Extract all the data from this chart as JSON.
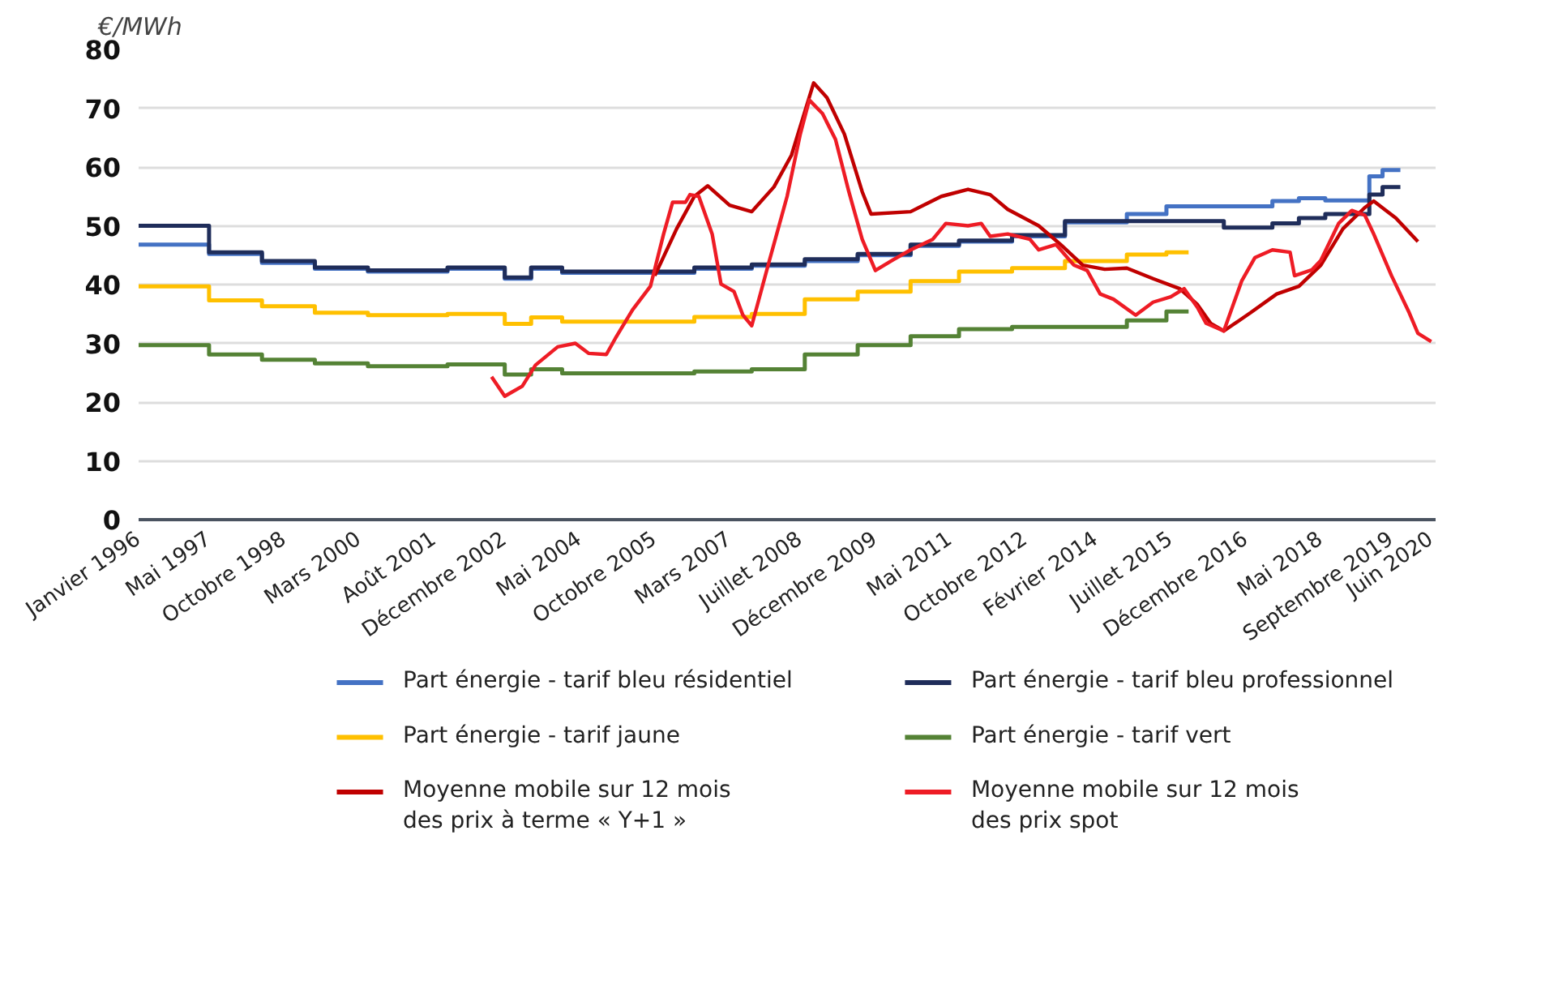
{
  "chart_data": {
    "type": "line",
    "ylabel": "€/MWh",
    "ylim": [
      0,
      80
    ],
    "yticks": [
      0,
      10,
      20,
      30,
      40,
      50,
      60,
      70,
      80
    ],
    "xlim": [
      "1996-01",
      "2020-07"
    ],
    "xticks": [
      {
        "value": "1996-01",
        "label": "Janvier 1996"
      },
      {
        "value": "1997-05",
        "label": "Mai 1997"
      },
      {
        "value": "1998-10",
        "label": "Octobre 1998"
      },
      {
        "value": "2000-03",
        "label": "Mars 2000"
      },
      {
        "value": "2001-08",
        "label": "Août 2001"
      },
      {
        "value": "2002-12",
        "label": "Décembre 2002"
      },
      {
        "value": "2004-05",
        "label": "Mai 2004"
      },
      {
        "value": "2005-10",
        "label": "Octobre 2005"
      },
      {
        "value": "2007-03",
        "label": "Mars 2007"
      },
      {
        "value": "2008-07",
        "label": "Juillet 2008"
      },
      {
        "value": "2009-12",
        "label": "Décembre 2009"
      },
      {
        "value": "2011-05",
        "label": "Mai 2011"
      },
      {
        "value": "2012-10",
        "label": "Octobre 2012"
      },
      {
        "value": "2014-02",
        "label": "Février 2014"
      },
      {
        "value": "2015-07",
        "label": "Juillet 2015"
      },
      {
        "value": "2016-12",
        "label": "Décembre 2016"
      },
      {
        "value": "2018-05",
        "label": "Mai 2018"
      },
      {
        "value": "2019-09",
        "label": "Septembre 2019"
      },
      {
        "value": "2020-06",
        "label": "Juin 2020"
      }
    ],
    "grid": "y",
    "legend": "bottom",
    "line_style": "solid",
    "marker": "none",
    "series": [
      {
        "name": "Part énergie - tarif bleu résidentiel",
        "color": "#4472c4",
        "type": "step",
        "x": [
          "1996-01",
          "1997-05",
          "1998-05",
          "1999-05",
          "2000-05",
          "2001-11",
          "2002-12",
          "2003-06",
          "2004-01",
          "2006-07",
          "2007-08",
          "2008-08",
          "2009-08",
          "2010-08",
          "2011-07",
          "2012-07",
          "2013-07",
          "2014-09",
          "2015-06",
          "2017-06",
          "2017-12",
          "2018-06",
          "2019-04",
          "2019-07",
          "2019-11"
        ],
        "values": [
          46.8,
          45.2,
          43.7,
          42.7,
          42.2,
          42.7,
          41.0,
          42.7,
          42.0,
          42.7,
          43.2,
          44.0,
          45.0,
          46.6,
          47.3,
          48.2,
          50.6,
          52.0,
          53.3,
          54.2,
          54.7,
          54.3,
          58.4,
          59.5,
          59.5
        ]
      },
      {
        "name": "Part énergie - tarif bleu professionnel",
        "color": "#1f2d5a",
        "type": "step",
        "x": [
          "1996-01",
          "1997-05",
          "1998-05",
          "1999-05",
          "2000-05",
          "2001-11",
          "2002-12",
          "2003-06",
          "2004-01",
          "2006-07",
          "2007-08",
          "2008-08",
          "2009-08",
          "2010-08",
          "2011-07",
          "2012-07",
          "2013-07",
          "2016-07",
          "2017-06",
          "2017-12",
          "2018-06",
          "2019-04",
          "2019-07",
          "2019-11"
        ],
        "values": [
          50.0,
          45.5,
          44.0,
          42.9,
          42.4,
          42.9,
          41.2,
          42.9,
          42.2,
          42.9,
          43.4,
          44.3,
          45.2,
          46.8,
          47.5,
          48.4,
          50.8,
          49.7,
          50.4,
          51.3,
          52.0,
          55.3,
          56.6,
          56.6
        ]
      },
      {
        "name": "Part énergie - tarif jaune",
        "color": "#ffc000",
        "type": "step",
        "x": [
          "1996-01",
          "1997-05",
          "1998-05",
          "1999-05",
          "2000-05",
          "2001-11",
          "2002-12",
          "2003-06",
          "2004-01",
          "2006-07",
          "2007-08",
          "2008-08",
          "2009-08",
          "2010-08",
          "2011-07",
          "2012-07",
          "2013-07",
          "2014-09",
          "2015-06",
          "2015-11"
        ],
        "values": [
          39.7,
          37.3,
          36.3,
          35.2,
          34.8,
          35.0,
          33.3,
          34.4,
          33.7,
          34.5,
          35.0,
          37.5,
          38.8,
          40.6,
          42.2,
          42.8,
          44.0,
          45.1,
          45.5,
          45.5
        ]
      },
      {
        "name": "Part énergie - tarif vert",
        "color": "#548235",
        "type": "step",
        "x": [
          "1996-01",
          "1997-05",
          "1998-05",
          "1999-05",
          "2000-05",
          "2001-11",
          "2002-12",
          "2003-06",
          "2004-01",
          "2006-07",
          "2007-08",
          "2008-08",
          "2009-08",
          "2010-08",
          "2011-07",
          "2012-07",
          "2014-09",
          "2015-06",
          "2015-11"
        ],
        "values": [
          29.7,
          28.1,
          27.2,
          26.6,
          26.1,
          26.4,
          24.7,
          25.6,
          24.9,
          25.2,
          25.6,
          28.1,
          29.7,
          31.2,
          32.4,
          32.8,
          33.9,
          35.4,
          35.4
        ]
      },
      {
        "name": "Moyenne mobile sur 12 mois des prix à terme « Y+1 »",
        "color": "#c00000",
        "x": [
          "2005-10",
          "2006-03",
          "2006-07",
          "2006-10",
          "2007-03",
          "2007-08",
          "2008-01",
          "2008-05",
          "2008-10",
          "2009-01",
          "2009-05",
          "2009-09",
          "2009-11",
          "2010-08",
          "2011-03",
          "2011-09",
          "2012-02",
          "2012-06",
          "2013-01",
          "2013-06",
          "2013-11",
          "2014-04",
          "2014-09",
          "2015-03",
          "2015-09",
          "2016-01",
          "2016-04",
          "2016-07",
          "2017-01",
          "2017-07",
          "2017-12",
          "2018-05",
          "2018-10",
          "2019-03",
          "2019-05",
          "2019-10",
          "2020-03"
        ],
        "values": [
          41.5,
          49.5,
          55.0,
          56.8,
          53.5,
          52.4,
          56.6,
          62.0,
          74.3,
          71.8,
          65.6,
          55.8,
          52.0,
          52.4,
          55.0,
          56.2,
          55.3,
          52.8,
          50.0,
          46.8,
          43.3,
          42.6,
          42.8,
          41.0,
          39.3,
          36.6,
          33.4,
          32.1,
          35.2,
          38.4,
          39.7,
          43.3,
          49.5,
          53.1,
          54.2,
          51.3,
          47.3
        ]
      },
      {
        "name": "Moyenne mobile sur 12 mois des prix spot",
        "color": "#ee1c25",
        "x": [
          "2002-09",
          "2002-12",
          "2003-04",
          "2003-07",
          "2003-12",
          "2004-04",
          "2004-07",
          "2004-11",
          "2005-01",
          "2005-05",
          "2005-09",
          "2005-12",
          "2006-02",
          "2006-05",
          "2006-06",
          "2006-08",
          "2006-11",
          "2007-01",
          "2007-04",
          "2007-06",
          "2007-08",
          "2007-12",
          "2008-04",
          "2008-07",
          "2008-09",
          "2008-12",
          "2009-03",
          "2009-06",
          "2009-09",
          "2009-12",
          "2010-04",
          "2010-08",
          "2011-01",
          "2011-04",
          "2011-09",
          "2011-12",
          "2012-02",
          "2012-06",
          "2012-11",
          "2013-01",
          "2013-05",
          "2013-09",
          "2013-12",
          "2014-03",
          "2014-06",
          "2014-11",
          "2015-03",
          "2015-07",
          "2015-10",
          "2016-01",
          "2016-03",
          "2016-07",
          "2016-11",
          "2017-02",
          "2017-06",
          "2017-10",
          "2017-11",
          "2018-03",
          "2018-05",
          "2018-09",
          "2018-12",
          "2019-03",
          "2019-05",
          "2019-09",
          "2020-01",
          "2020-03",
          "2020-06"
        ],
        "values": [
          24.3,
          21.0,
          22.7,
          26.3,
          29.4,
          30.0,
          28.3,
          28.1,
          30.8,
          35.7,
          39.7,
          48.6,
          54.0,
          54.0,
          55.3,
          55.0,
          48.6,
          40.1,
          38.8,
          34.8,
          33.0,
          44.1,
          55.0,
          65.6,
          71.4,
          69.1,
          64.7,
          55.8,
          47.7,
          42.4,
          44.2,
          45.9,
          47.7,
          50.4,
          50.0,
          50.4,
          48.2,
          48.6,
          47.7,
          45.9,
          46.8,
          43.3,
          42.4,
          38.4,
          37.5,
          34.8,
          37.0,
          37.9,
          39.3,
          36.1,
          33.4,
          32.1,
          40.6,
          44.6,
          45.9,
          45.5,
          41.5,
          42.5,
          44.1,
          50.4,
          52.6,
          51.8,
          48.6,
          41.5,
          35.2,
          31.7,
          30.3
        ]
      }
    ]
  }
}
